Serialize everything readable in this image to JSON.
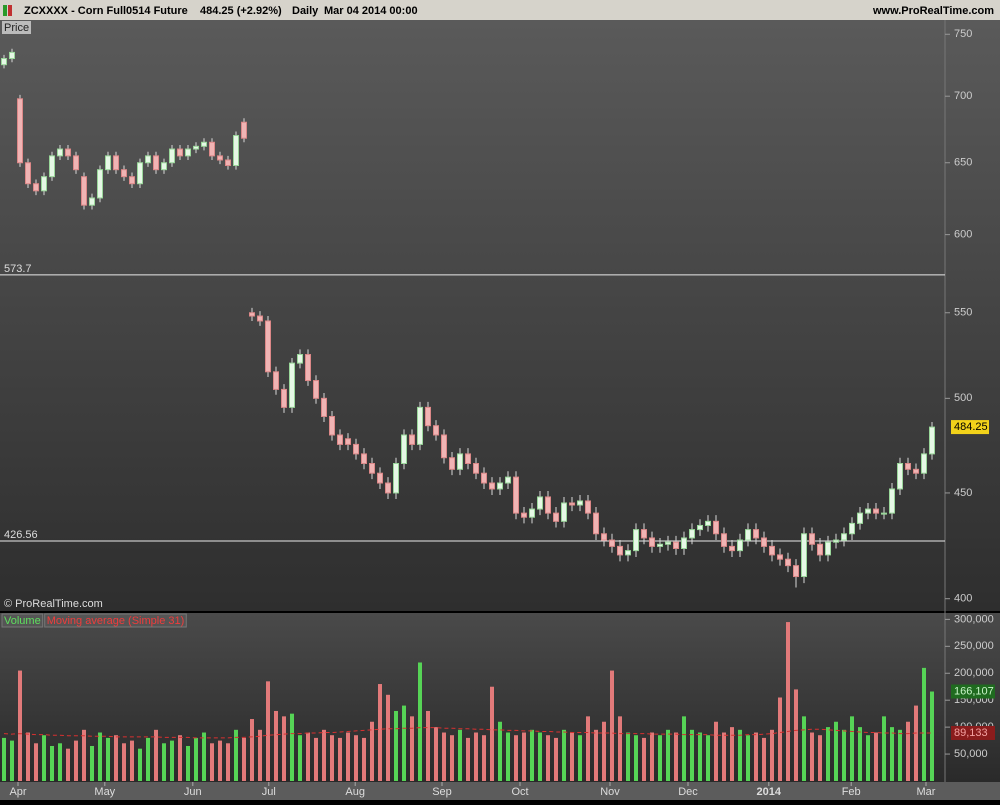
{
  "header": {
    "symbol": "ZCXXXX - Corn Full0514 Future",
    "quote": "484.25 (+2.92%)",
    "period": "Daily",
    "date": "Mar 04 2014 00:00",
    "site": "www.ProRealTime.com"
  },
  "chart_data": [
    {
      "type": "candlestick",
      "panel_label": "Price",
      "watermark": "© ProRealTime.com",
      "up_color": "#e6f8e6",
      "down_color": "#f0b4b4",
      "wick_color": "#d8d8d8",
      "log_scale": true,
      "ylim": [
        395,
        762
      ],
      "yticks": [
        400,
        450,
        500,
        550,
        600,
        650,
        700,
        750
      ],
      "xlim": [
        -0.5,
        117.5
      ],
      "xticks": [
        {
          "value": 1.75,
          "label": "Apr"
        },
        {
          "value": 12.6,
          "label": "May"
        },
        {
          "value": 23.6,
          "label": "Jun"
        },
        {
          "value": 33.1,
          "label": "Jul"
        },
        {
          "value": 43.9,
          "label": "Aug"
        },
        {
          "value": 54.75,
          "label": "Sep"
        },
        {
          "value": 64.5,
          "label": "Oct"
        },
        {
          "value": 75.75,
          "label": "Nov"
        },
        {
          "value": 85.5,
          "label": "Dec"
        },
        {
          "value": 95.6,
          "label": "2014"
        },
        {
          "value": 105.9,
          "label": "Feb"
        },
        {
          "value": 115.25,
          "label": "Mar"
        }
      ],
      "hlines": [
        573.7,
        426.56
      ],
      "open": [
        725,
        730,
        698,
        650,
        635,
        630,
        640,
        655,
        660,
        655,
        640,
        620,
        625,
        645,
        655,
        645,
        640,
        635,
        650,
        655,
        645,
        650,
        660,
        655,
        660,
        662,
        665,
        655,
        652,
        648,
        680,
        550,
        548,
        545,
        515,
        505,
        495,
        520,
        525,
        510,
        500,
        490,
        480,
        478,
        475,
        470,
        465,
        460,
        455,
        450,
        465,
        480,
        475,
        495,
        485,
        480,
        468,
        462,
        470,
        465,
        460,
        455,
        452,
        455,
        458,
        440,
        438,
        442,
        448,
        440,
        436,
        445,
        444,
        446,
        440,
        430,
        427,
        424,
        420,
        422,
        432,
        428,
        424,
        425,
        426,
        423,
        428,
        432,
        434,
        436,
        430,
        424,
        422,
        427,
        432,
        428,
        424,
        420,
        418,
        415,
        410,
        430,
        425,
        420,
        426,
        427,
        430,
        435,
        440,
        442,
        440,
        440,
        452,
        465,
        462,
        460,
        470
      ],
      "high": [
        733,
        738,
        701,
        653,
        638,
        643,
        658,
        663,
        663,
        658,
        643,
        628,
        648,
        658,
        658,
        648,
        643,
        653,
        658,
        658,
        653,
        663,
        663,
        663,
        665,
        668,
        668,
        658,
        655,
        673,
        683,
        553,
        551,
        548,
        518,
        508,
        523,
        528,
        528,
        513,
        503,
        493,
        483,
        481,
        478,
        473,
        468,
        463,
        458,
        468,
        483,
        483,
        498,
        498,
        488,
        483,
        471,
        473,
        473,
        468,
        463,
        458,
        458,
        461,
        461,
        443,
        445,
        451,
        451,
        443,
        448,
        448,
        449,
        449,
        443,
        433,
        430,
        427,
        425,
        435,
        435,
        431,
        428,
        429,
        429,
        431,
        435,
        437,
        439,
        439,
        433,
        427,
        430,
        435,
        435,
        431,
        427,
        423,
        421,
        418,
        433,
        433,
        428,
        429,
        430,
        433,
        438,
        443,
        445,
        445,
        443,
        455,
        468,
        468,
        465,
        473,
        487
      ],
      "low": [
        722,
        727,
        647,
        632,
        627,
        627,
        637,
        652,
        652,
        642,
        617,
        617,
        622,
        642,
        642,
        637,
        632,
        632,
        647,
        642,
        642,
        647,
        652,
        652,
        657,
        659,
        652,
        649,
        645,
        645,
        665,
        545,
        542,
        512,
        502,
        492,
        492,
        517,
        507,
        497,
        487,
        477,
        472,
        472,
        467,
        462,
        457,
        452,
        447,
        447,
        462,
        472,
        472,
        482,
        477,
        465,
        459,
        459,
        462,
        457,
        452,
        449,
        449,
        452,
        437,
        435,
        435,
        439,
        437,
        433,
        433,
        441,
        441,
        437,
        427,
        424,
        421,
        417,
        417,
        419,
        425,
        421,
        421,
        422,
        420,
        420,
        425,
        429,
        431,
        427,
        421,
        419,
        419,
        424,
        425,
        421,
        417,
        415,
        412,
        405,
        407,
        422,
        417,
        417,
        423,
        424,
        427,
        432,
        437,
        437,
        437,
        437,
        449,
        459,
        457,
        457,
        467
      ],
      "close": [
        730,
        735,
        650,
        635,
        630,
        640,
        655,
        660,
        655,
        645,
        620,
        625,
        645,
        655,
        645,
        640,
        635,
        650,
        655,
        645,
        650,
        660,
        655,
        660,
        662,
        665,
        655,
        652,
        648,
        670,
        668,
        548,
        545,
        515,
        505,
        495,
        520,
        525,
        510,
        500,
        490,
        480,
        475,
        475,
        470,
        465,
        460,
        455,
        450,
        465,
        480,
        475,
        495,
        485,
        480,
        468,
        462,
        470,
        465,
        460,
        455,
        452,
        455,
        458,
        440,
        438,
        442,
        448,
        440,
        436,
        445,
        444,
        446,
        440,
        430,
        427,
        424,
        420,
        422,
        432,
        428,
        424,
        425,
        426,
        423,
        428,
        432,
        434,
        436,
        430,
        424,
        422,
        427,
        432,
        428,
        424,
        420,
        418,
        415,
        410,
        430,
        425,
        420,
        426,
        427,
        430,
        435,
        440,
        442,
        440,
        440,
        452,
        465,
        462,
        460,
        470,
        484.25
      ]
    },
    {
      "type": "volume",
      "up_color": "#56d456",
      "down_color": "#e27a7a",
      "ylim": [
        0,
        310000
      ],
      "yticks": [
        {
          "value": 50000,
          "label": "50,000"
        },
        {
          "value": 100000,
          "label": "100,000"
        },
        {
          "value": 150000,
          "label": "150,000"
        },
        {
          "value": 200000,
          "label": "200,000"
        },
        {
          "value": 250000,
          "label": "250,000"
        },
        {
          "value": 300000,
          "label": "300,000"
        }
      ],
      "series": [
        {
          "name": "Volume",
          "color": "#3e9e3e",
          "current_label": "166,107",
          "values": [
            80000,
            75000,
            205000,
            90000,
            70000,
            85000,
            65000,
            70000,
            60000,
            75000,
            95000,
            65000,
            90000,
            80000,
            85000,
            70000,
            75000,
            60000,
            80000,
            95000,
            70000,
            75000,
            85000,
            65000,
            80000,
            90000,
            70000,
            75000,
            70000,
            95000,
            80000,
            115000,
            95000,
            185000,
            130000,
            120000,
            125000,
            85000,
            90000,
            80000,
            95000,
            85000,
            80000,
            90000,
            85000,
            80000,
            110000,
            180000,
            160000,
            130000,
            140000,
            120000,
            220000,
            130000,
            100000,
            90000,
            85000,
            95000,
            80000,
            90000,
            85000,
            175000,
            110000,
            90000,
            85000,
            90000,
            95000,
            90000,
            85000,
            80000,
            95000,
            90000,
            85000,
            120000,
            95000,
            110000,
            205000,
            120000,
            90000,
            85000,
            80000,
            90000,
            85000,
            95000,
            90000,
            120000,
            95000,
            90000,
            85000,
            110000,
            90000,
            100000,
            95000,
            85000,
            90000,
            80000,
            95000,
            155000,
            295000,
            170000,
            120000,
            90000,
            85000,
            100000,
            110000,
            95000,
            120000,
            100000,
            85000,
            90000,
            120000,
            100000,
            95000,
            110000,
            140000,
            210000,
            166107
          ]
        },
        {
          "name": "Moving average (Simple 31)",
          "color": "#d83030",
          "dashed": true,
          "current_label": "89,133",
          "values": [
            88000,
            87000,
            88000,
            87000,
            86000,
            86000,
            85000,
            85000,
            84000,
            84000,
            84000,
            83000,
            83000,
            83000,
            82000,
            82000,
            82000,
            82000,
            82000,
            82000,
            81000,
            81000,
            81000,
            81000,
            80000,
            80000,
            80000,
            80000,
            80000,
            81000,
            81000,
            82000,
            83000,
            85000,
            86000,
            87000,
            88000,
            88000,
            89000,
            89000,
            90000,
            90000,
            91000,
            92000,
            93000,
            94000,
            95000,
            96000,
            97000,
            97000,
            98000,
            98000,
            99000,
            99000,
            99000,
            98000,
            98000,
            97000,
            97000,
            96000,
            96000,
            95000,
            95000,
            94000,
            94000,
            93000,
            93000,
            92000,
            92000,
            91000,
            91000,
            90000,
            90000,
            90000,
            89000,
            89000,
            89000,
            88000,
            88000,
            88000,
            88000,
            87000,
            87000,
            87000,
            87000,
            86000,
            86000,
            86000,
            86000,
            85000,
            85000,
            85000,
            85000,
            86000,
            86000,
            87000,
            88000,
            90000,
            92000,
            94000,
            95000,
            96000,
            96000,
            95000,
            94000,
            93000,
            92000,
            91000,
            90000,
            90000,
            89000,
            89000,
            88000,
            88000,
            89000,
            89000,
            89133
          ]
        }
      ]
    }
  ]
}
